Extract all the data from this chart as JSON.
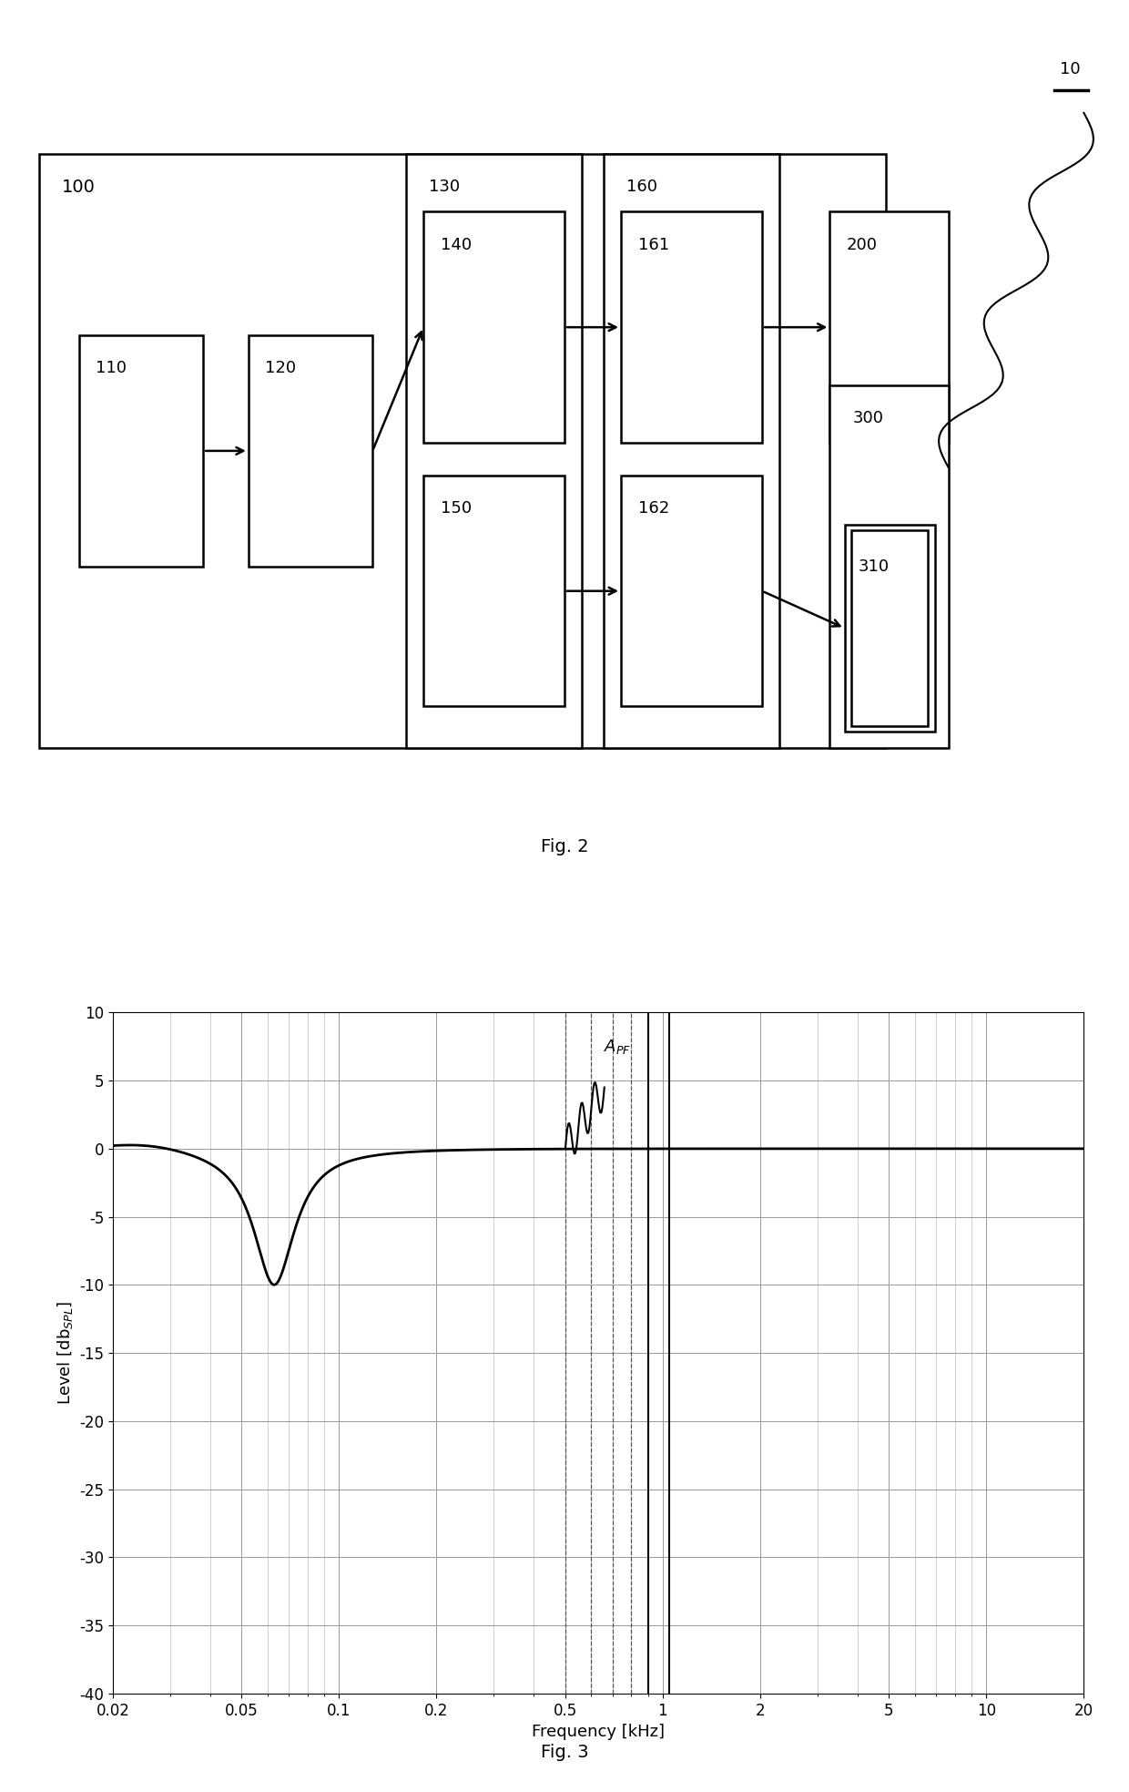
{
  "fig_width": 12.4,
  "fig_height": 19.67,
  "bg_color": "#ffffff",
  "block_color": "#ffffff",
  "block_edge_color": "#000000",
  "block_linewidth": 1.8,
  "fig2_label": "Fig. 2",
  "fig3_label": "Fig. 3",
  "plot_ylim": [
    -40,
    10
  ],
  "plot_yticks": [
    10,
    5,
    0,
    -5,
    -10,
    -15,
    -20,
    -25,
    -30,
    -35,
    -40
  ],
  "plot_xlim_log": [
    0.02,
    20
  ],
  "plot_xticks": [
    0.02,
    0.05,
    0.1,
    0.2,
    0.5,
    1,
    2,
    5,
    10,
    20
  ],
  "plot_xtick_labels": [
    "0.02",
    "0.05",
    "0.1",
    "0.2",
    "0.5",
    "1",
    "2",
    "5",
    "10",
    "20"
  ],
  "plot_xlabel": "Frequency [kHz]",
  "line_color": "#000000",
  "vertical_lines_dashed": [
    0.5,
    0.6,
    0.7,
    0.8
  ],
  "vertical_lines_solid": [
    0.9,
    1.05
  ]
}
